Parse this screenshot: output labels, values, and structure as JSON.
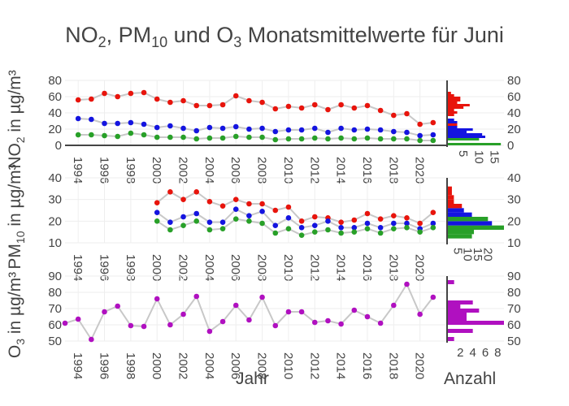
{
  "title": {
    "prefix": "NO",
    "sub1": "2",
    "mid1": ", PM",
    "sub2": "10",
    "mid2": " und O",
    "sub3": "3",
    "suffix": " Monatsmittelwerte für Juni"
  },
  "xlabel": "Jahr",
  "hist_xlabel": "Anzahl",
  "colors": {
    "red": "#e8140c",
    "blue": "#1414e0",
    "green": "#28a028",
    "purple": "#b010c0",
    "line": "#c8c8c8",
    "grid": "#eeeeee",
    "zeroline": "#444444"
  },
  "chart_data": [
    {
      "type": "line",
      "panel": "NO2",
      "ylabel": {
        "main": "NO",
        "sub": "2",
        "rest": " in µg/m³"
      },
      "ylim": [
        0,
        80
      ],
      "yticks": [
        "0",
        "20",
        "40",
        "60",
        "80"
      ],
      "xlim": [
        1993,
        2022
      ],
      "xticks": [
        "1994",
        "1996",
        "1998",
        "2000",
        "2002",
        "2004",
        "2006",
        "2008",
        "2010",
        "2012",
        "2014",
        "2016",
        "2018",
        "2020"
      ],
      "x": [
        1994,
        1995,
        1996,
        1997,
        1998,
        1999,
        2000,
        2001,
        2002,
        2003,
        2004,
        2005,
        2006,
        2007,
        2008,
        2009,
        2010,
        2011,
        2012,
        2013,
        2014,
        2015,
        2016,
        2017,
        2018,
        2019,
        2020,
        2021
      ],
      "series": [
        {
          "name": "rot",
          "color": "red",
          "values": [
            56,
            57,
            64,
            60,
            64,
            65,
            57,
            53,
            55,
            49,
            49,
            50,
            61,
            55,
            53,
            45,
            48,
            46,
            50,
            44,
            50,
            46,
            49,
            43,
            37,
            39,
            26,
            28
          ]
        },
        {
          "name": "blau",
          "color": "blue",
          "values": [
            33,
            32,
            27,
            27,
            28,
            26,
            22,
            24,
            21,
            18,
            22,
            21,
            23,
            20,
            21,
            17,
            19,
            19,
            21,
            16,
            21,
            19,
            20,
            19,
            17,
            16,
            12,
            13
          ]
        },
        {
          "name": "grün",
          "color": "green",
          "values": [
            13,
            13,
            12,
            11,
            15,
            13,
            10,
            10,
            10,
            8,
            9,
            9,
            11,
            10,
            10,
            7,
            8,
            8,
            9,
            8,
            9,
            8,
            9,
            8,
            8,
            8,
            6,
            6
          ]
        }
      ],
      "hist": {
        "xlim": [
          0,
          18
        ],
        "xticks": [
          "5",
          "10",
          "15"
        ],
        "xtick_values": [
          5,
          10,
          15
        ],
        "bin_width": 3,
        "bins": [
          {
            "start": 0,
            "count": 17,
            "color": "green"
          },
          {
            "start": 6,
            "count": 10,
            "color": "green"
          },
          {
            "start": 9,
            "count": 12,
            "color": "blue"
          },
          {
            "start": 12,
            "count": 11,
            "color": "blue"
          },
          {
            "start": 15,
            "count": 6,
            "color": "blue"
          },
          {
            "start": 18,
            "count": 8,
            "color": "blue"
          },
          {
            "start": 21,
            "count": 3,
            "color": "blue"
          },
          {
            "start": 24,
            "count": 3,
            "color": "red"
          },
          {
            "start": 27,
            "count": 3,
            "color": "blue"
          },
          {
            "start": 30,
            "count": 2,
            "color": "blue"
          },
          {
            "start": 36,
            "count": 2,
            "color": "red"
          },
          {
            "start": 39,
            "count": 3,
            "color": "red"
          },
          {
            "start": 42,
            "count": 2,
            "color": "red"
          },
          {
            "start": 45,
            "count": 5,
            "color": "red"
          },
          {
            "start": 48,
            "count": 7,
            "color": "red"
          },
          {
            "start": 51,
            "count": 3,
            "color": "red"
          },
          {
            "start": 54,
            "count": 4,
            "color": "red"
          },
          {
            "start": 57,
            "count": 4,
            "color": "red"
          },
          {
            "start": 60,
            "count": 2,
            "color": "red"
          },
          {
            "start": 63,
            "count": 1,
            "color": "red"
          }
        ]
      }
    },
    {
      "type": "line",
      "panel": "PM10",
      "ylabel": {
        "main": "PM",
        "sub": "10",
        "rest": " in µg/m³"
      },
      "ylim": [
        10,
        40
      ],
      "yticks": [
        "10",
        "20",
        "30",
        "40"
      ],
      "xlim": [
        1993,
        2022
      ],
      "xticks": [
        "1994",
        "1996",
        "1998",
        "2000",
        "2002",
        "2004",
        "2006",
        "2008",
        "2010",
        "2012",
        "2014",
        "2016",
        "2018",
        "2020"
      ],
      "x": [
        2000,
        2001,
        2002,
        2003,
        2004,
        2005,
        2006,
        2007,
        2008,
        2009,
        2010,
        2011,
        2012,
        2013,
        2014,
        2015,
        2016,
        2017,
        2018,
        2019,
        2020,
        2021
      ],
      "series": [
        {
          "name": "rot",
          "color": "red",
          "values": [
            28.5,
            33.5,
            30,
            33.5,
            29,
            27,
            30,
            28,
            28,
            25,
            26.5,
            20,
            22,
            21.5,
            19.5,
            20.5,
            23.5,
            21,
            22.5,
            21.5,
            19,
            24
          ]
        },
        {
          "name": "blau",
          "color": "blue",
          "values": [
            24,
            19.5,
            22,
            23.5,
            19.5,
            19.5,
            25.5,
            22.5,
            24.5,
            18,
            21.5,
            17,
            18,
            20,
            17,
            17,
            19,
            17,
            19,
            19,
            16.5,
            19
          ]
        },
        {
          "name": "grün",
          "color": "green",
          "values": [
            20,
            16,
            18,
            20,
            16,
            16.5,
            21,
            20,
            19,
            14.5,
            16.5,
            13.5,
            15,
            16,
            14.5,
            15,
            16.5,
            14.5,
            16.5,
            17,
            15,
            17
          ]
        }
      ],
      "hist": {
        "xlim": [
          0,
          28
        ],
        "xticks": [
          "5",
          "10",
          "15",
          "20"
        ],
        "xtick_values": [
          5,
          10,
          15,
          20
        ],
        "bin_width": 2,
        "bins": [
          {
            "start": 12,
            "count": 12,
            "color": "green"
          },
          {
            "start": 14,
            "count": 13,
            "color": "green"
          },
          {
            "start": 16,
            "count": 28,
            "color": "green"
          },
          {
            "start": 18,
            "count": 22,
            "color": "blue"
          },
          {
            "start": 20,
            "count": 20,
            "color": "green"
          },
          {
            "start": 22,
            "count": 12,
            "color": "blue"
          },
          {
            "start": 24,
            "count": 8,
            "color": "blue"
          },
          {
            "start": 26,
            "count": 7,
            "color": "red"
          },
          {
            "start": 28,
            "count": 3,
            "color": "red"
          },
          {
            "start": 30,
            "count": 3,
            "color": "red"
          },
          {
            "start": 32,
            "count": 2,
            "color": "red"
          },
          {
            "start": 34,
            "count": 2,
            "color": "red"
          }
        ]
      }
    },
    {
      "type": "line",
      "panel": "O3",
      "ylabel": {
        "main": "O",
        "sub": "3",
        "rest": " in µg/m³"
      },
      "ylim": [
        50,
        90
      ],
      "yticks": [
        "50",
        "60",
        "70",
        "80",
        "90"
      ],
      "xlim": [
        1993,
        2022
      ],
      "xticks": [
        "1994",
        "1996",
        "1998",
        "2000",
        "2002",
        "2004",
        "2006",
        "2008",
        "2010",
        "2012",
        "2014",
        "2016",
        "2018",
        "2020"
      ],
      "x": [
        1993,
        1994,
        1995,
        1996,
        1997,
        1998,
        1999,
        2000,
        2001,
        2002,
        2003,
        2004,
        2005,
        2006,
        2007,
        2008,
        2009,
        2010,
        2011,
        2012,
        2013,
        2014,
        2015,
        2016,
        2017,
        2018,
        2019,
        2020,
        2021
      ],
      "series": [
        {
          "name": "O3",
          "color": "purple",
          "values": [
            61,
            63.5,
            51,
            68,
            71.5,
            59.5,
            59,
            76,
            60,
            66.5,
            77.5,
            56,
            62,
            72,
            63,
            77,
            59.5,
            68,
            68,
            61.5,
            62.5,
            60.5,
            69,
            65,
            61,
            72,
            85,
            66.5,
            77
          ]
        }
      ],
      "hist": {
        "xlim": [
          0,
          9
        ],
        "xticks": [
          "2",
          "4",
          "6",
          "8"
        ],
        "xtick_values": [
          2,
          4,
          6,
          8
        ],
        "bin_width": 2.5,
        "bins": [
          {
            "start": 50,
            "count": 1,
            "color": "purple"
          },
          {
            "start": 55,
            "count": 4,
            "color": "purple"
          },
          {
            "start": 60,
            "count": 9,
            "color": "purple"
          },
          {
            "start": 62.5,
            "count": 3,
            "color": "purple"
          },
          {
            "start": 65,
            "count": 3,
            "color": "purple"
          },
          {
            "start": 67.5,
            "count": 5,
            "color": "purple"
          },
          {
            "start": 70,
            "count": 2,
            "color": "purple"
          },
          {
            "start": 72.5,
            "count": 4,
            "color": "purple"
          },
          {
            "start": 85,
            "count": 1,
            "color": "purple"
          }
        ]
      }
    }
  ]
}
